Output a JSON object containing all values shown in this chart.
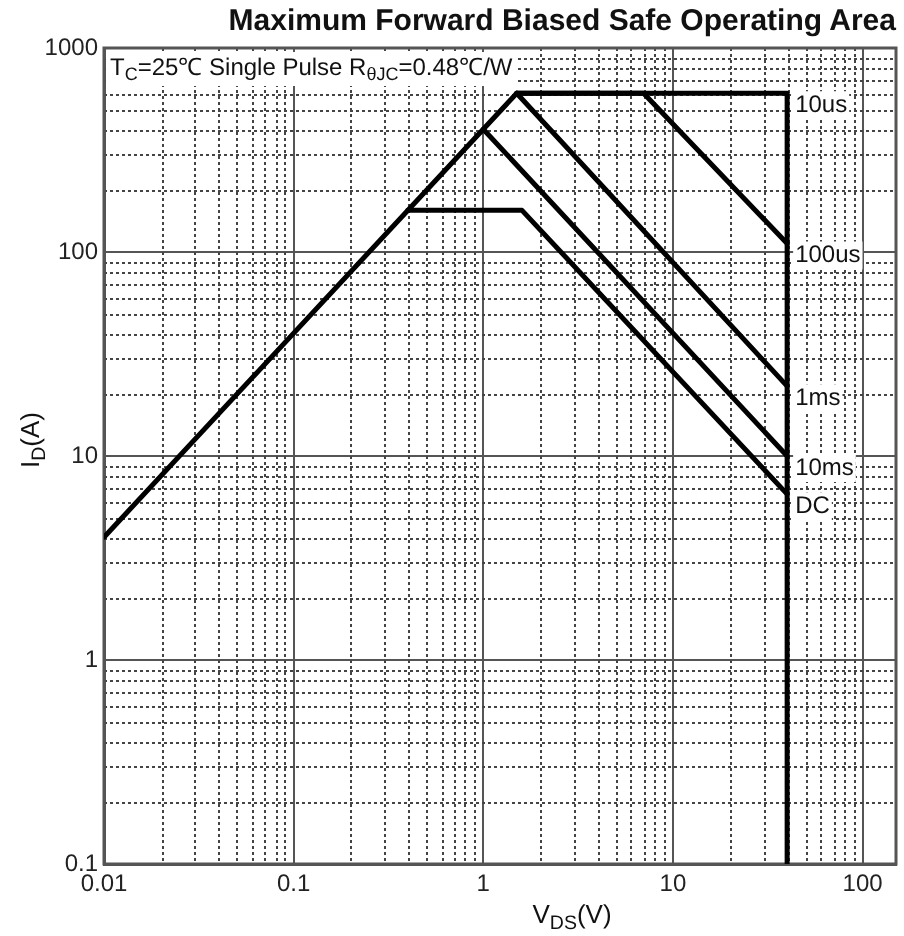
{
  "chart_data": {
    "type": "line",
    "title": "Maximum Forward Biased Safe Operating Area",
    "xlabel": "V$_{DS}$(V)",
    "ylabel": "I$_{D}$(A)",
    "annotations": [
      "T$_{C}$=25℃ Single Pulse R$_{θJC}$=0.48℃/W"
    ],
    "log": "xy",
    "xlim": [
      0.01,
      150
    ],
    "ylim": [
      0.1,
      1000
    ],
    "xticks": [
      0.01,
      0.1,
      1,
      10,
      100
    ],
    "yticks": [
      0.1,
      1,
      10,
      100,
      1000
    ],
    "grid": true,
    "legend": false,
    "marker": "none",
    "line_style": "solid",
    "series": [
      {
        "name": "10us",
        "color": "#000000",
        "x": [
          0.01,
          1.5,
          40,
          40
        ],
        "values": [
          4,
          600,
          600,
          0.1
        ]
      },
      {
        "name": "100us",
        "color": "#000000",
        "x": [
          1.5,
          7,
          40
        ],
        "values": [
          600,
          600,
          110
        ]
      },
      {
        "name": "1ms",
        "color": "#000000",
        "x": [
          1.5,
          40
        ],
        "values": [
          600,
          22
        ]
      },
      {
        "name": "10ms",
        "color": "#000000",
        "x": [
          1,
          40
        ],
        "values": [
          400,
          10
        ]
      },
      {
        "name": "DC",
        "color": "#000000",
        "x": [
          0.4,
          1.6,
          40
        ],
        "values": [
          160,
          160,
          6.5
        ]
      }
    ]
  }
}
